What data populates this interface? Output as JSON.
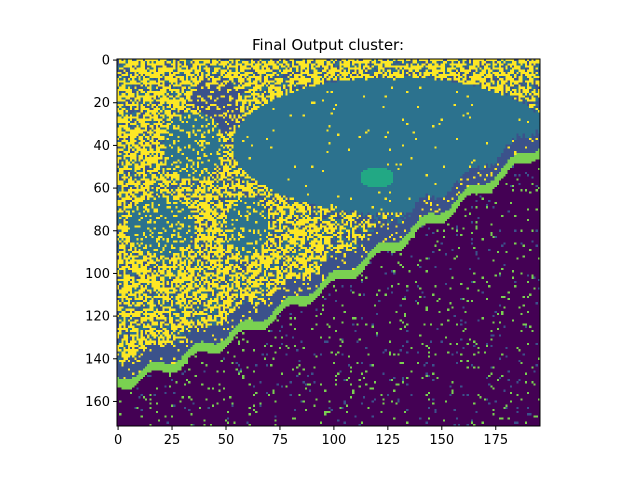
{
  "chart_data": {
    "type": "heatmap",
    "title": "Final Output cluster:",
    "xlabel": "",
    "ylabel": "",
    "xlim": [
      0,
      196
    ],
    "ylim": [
      172,
      0
    ],
    "x_ticks": [
      "0",
      "25",
      "50",
      "75",
      "100",
      "125",
      "150",
      "175"
    ],
    "y_ticks": [
      "0",
      "20",
      "40",
      "60",
      "80",
      "100",
      "120",
      "140",
      "160"
    ],
    "x_tick_values": [
      0,
      25,
      50,
      75,
      100,
      125,
      150,
      175
    ],
    "y_tick_values": [
      0,
      20,
      40,
      60,
      80,
      100,
      120,
      140,
      160
    ],
    "grid": false,
    "colormap": "viridis",
    "clusters": [
      {
        "id": 0,
        "color": "#440154"
      },
      {
        "id": 1,
        "color": "#3b528b"
      },
      {
        "id": 2,
        "color": "#2c728e"
      },
      {
        "id": 3,
        "color": "#22a884"
      },
      {
        "id": 4,
        "color": "#7ad151"
      },
      {
        "id": 5,
        "color": "#fde725"
      }
    ]
  }
}
